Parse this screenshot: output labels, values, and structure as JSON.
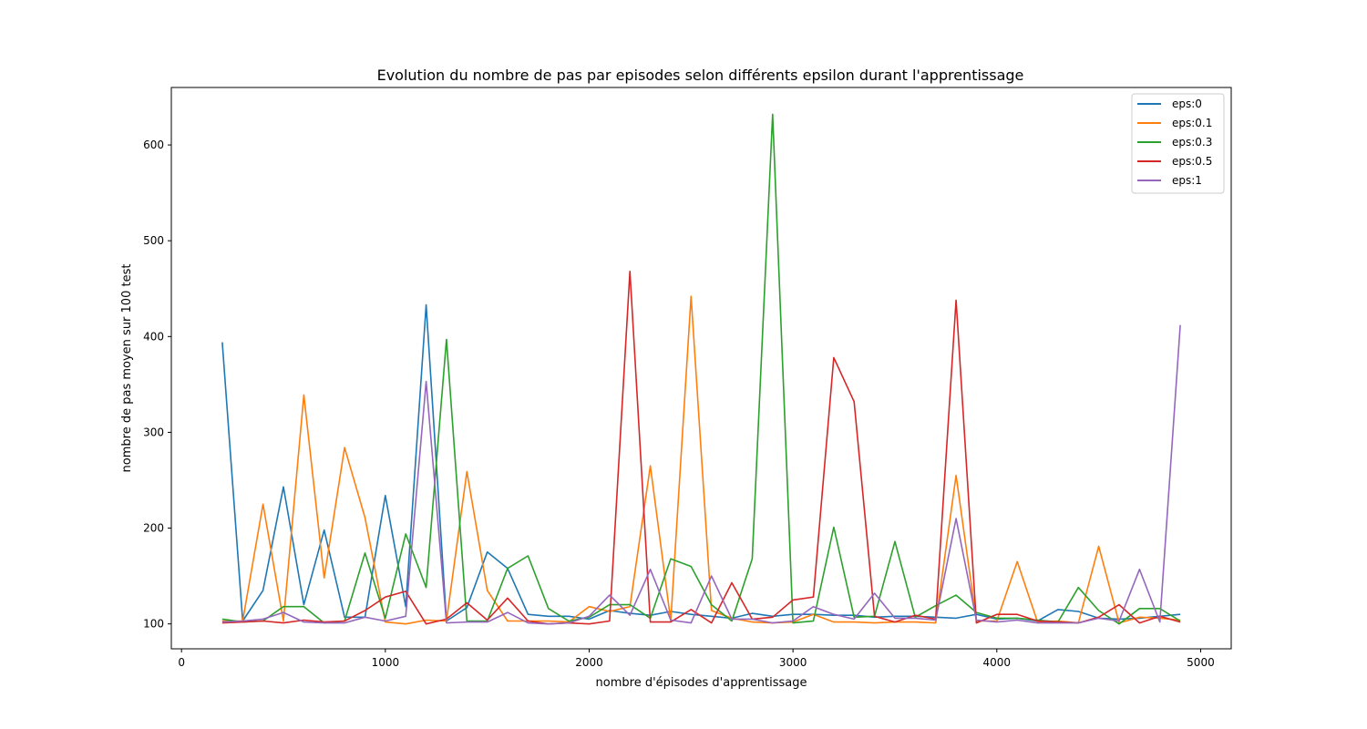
{
  "chart_data": {
    "type": "line",
    "title": "Evolution du nombre de pas par episodes selon différents epsilon durant l'apprentissage",
    "xlabel": "nombre d'épisodes d'apprentissage",
    "ylabel": "nombre de pas moyen sur 100 test",
    "xlim": [
      -50,
      5150
    ],
    "ylim": [
      74,
      660
    ],
    "xticks": [
      0,
      1000,
      2000,
      3000,
      4000,
      5000
    ],
    "yticks": [
      100,
      200,
      300,
      400,
      500,
      600
    ],
    "grid": false,
    "legend_position": "top-right",
    "x": [
      200,
      300,
      400,
      500,
      600,
      700,
      800,
      900,
      1000,
      1100,
      1200,
      1300,
      1400,
      1500,
      1600,
      1700,
      1800,
      1900,
      2000,
      2100,
      2200,
      2300,
      2400,
      2500,
      2600,
      2700,
      2800,
      2900,
      3000,
      3100,
      3200,
      3300,
      3400,
      3500,
      3600,
      3700,
      3800,
      3900,
      4000,
      4100,
      4200,
      4300,
      4400,
      4500,
      4600,
      4700,
      4800,
      4900
    ],
    "series": [
      {
        "name": "eps:0",
        "color": "#1f77b4",
        "values": [
          394,
          103,
          135,
          243,
          120,
          198,
          107,
          107,
          234,
          118,
          433,
          103,
          117,
          175,
          158,
          110,
          108,
          108,
          105,
          114,
          111,
          109,
          113,
          110,
          108,
          106,
          111,
          108,
          110,
          110,
          109,
          109,
          107,
          108,
          108,
          107,
          106,
          110,
          105,
          106,
          103,
          115,
          113,
          106,
          105,
          106,
          108,
          110
        ]
      },
      {
        "name": "eps:0.1",
        "color": "#ff7f0e",
        "values": [
          103,
          103,
          225,
          103,
          339,
          148,
          284,
          211,
          102,
          100,
          104,
          103,
          259,
          135,
          103,
          103,
          103,
          102,
          118,
          113,
          118,
          265,
          103,
          442,
          114,
          106,
          102,
          101,
          102,
          110,
          102,
          102,
          101,
          102,
          102,
          101,
          255,
          103,
          103,
          165,
          102,
          103,
          101,
          181,
          101,
          107,
          106,
          104
        ]
      },
      {
        "name": "eps:0.3",
        "color": "#2ca02c",
        "values": [
          105,
          102,
          103,
          118,
          118,
          101,
          103,
          174,
          106,
          194,
          138,
          397,
          103,
          103,
          158,
          171,
          116,
          103,
          107,
          120,
          120,
          106,
          168,
          160,
          120,
          103,
          168,
          632,
          101,
          103,
          201,
          107,
          108,
          186,
          107,
          119,
          130,
          112,
          106,
          106,
          104,
          102,
          138,
          114,
          100,
          116,
          116,
          103
        ]
      },
      {
        "name": "eps:0.5",
        "color": "#d62728",
        "values": [
          101,
          102,
          103,
          101,
          104,
          102,
          103,
          114,
          128,
          134,
          100,
          105,
          122,
          104,
          127,
          103,
          100,
          101,
          100,
          103,
          468,
          102,
          102,
          115,
          101,
          143,
          105,
          107,
          125,
          128,
          378,
          332,
          108,
          102,
          109,
          105,
          438,
          101,
          110,
          110,
          103,
          102,
          101,
          107,
          120,
          101,
          108,
          102
        ]
      },
      {
        "name": "eps:1",
        "color": "#9467bd",
        "values": [
          102,
          103,
          105,
          112,
          102,
          101,
          101,
          107,
          103,
          108,
          353,
          101,
          102,
          102,
          112,
          101,
          100,
          101,
          108,
          130,
          109,
          157,
          104,
          101,
          150,
          105,
          105,
          101,
          103,
          118,
          110,
          105,
          132,
          106,
          106,
          104,
          210,
          104,
          102,
          104,
          101,
          101,
          101,
          106,
          103,
          157,
          102,
          412
        ]
      }
    ]
  }
}
